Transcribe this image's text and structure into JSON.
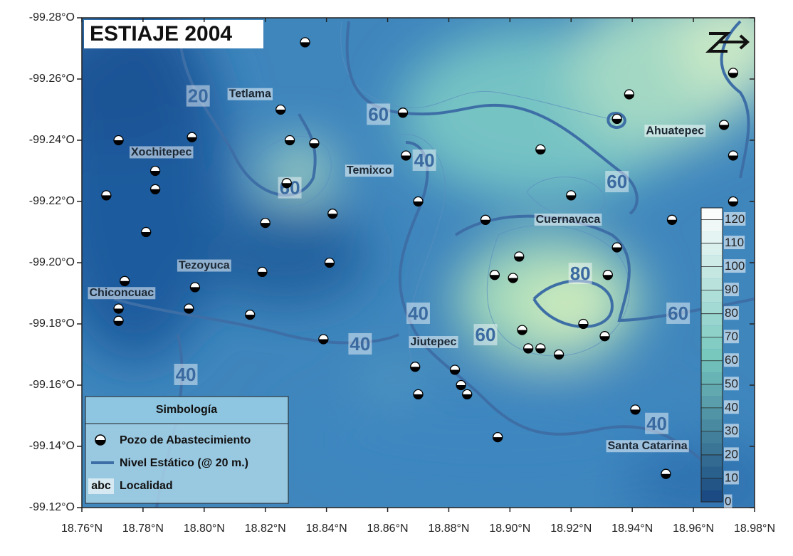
{
  "map": {
    "title": "ESTIAJE 2004",
    "xlim": [
      18.76,
      18.98
    ],
    "ylim": [
      -99.28,
      -99.12
    ],
    "xticks": [
      {
        "value": 18.76,
        "label": "18.76°N"
      },
      {
        "value": 18.78,
        "label": "18.78°N"
      },
      {
        "value": 18.8,
        "label": "18.80°N"
      },
      {
        "value": 18.82,
        "label": "18.82°N"
      },
      {
        "value": 18.84,
        "label": "18.84°N"
      },
      {
        "value": 18.86,
        "label": "18.86°N"
      },
      {
        "value": 18.88,
        "label": "18.88°N"
      },
      {
        "value": 18.9,
        "label": "18.90°N"
      },
      {
        "value": 18.92,
        "label": "18.92°N"
      },
      {
        "value": 18.94,
        "label": "18.94°N"
      },
      {
        "value": 18.96,
        "label": "18.96°N"
      },
      {
        "value": 18.98,
        "label": "18.98°N"
      }
    ],
    "yticks": [
      {
        "value": -99.28,
        "label": "-99.28°O"
      },
      {
        "value": -99.26,
        "label": "-99.26°O"
      },
      {
        "value": -99.24,
        "label": "-99.24°O"
      },
      {
        "value": -99.22,
        "label": "-99.22°O"
      },
      {
        "value": -99.2,
        "label": "-99.20°O"
      },
      {
        "value": -99.18,
        "label": "-99.18°O"
      },
      {
        "value": -99.16,
        "label": "-99.16°O"
      },
      {
        "value": -99.14,
        "label": "-99.14°O"
      },
      {
        "value": -99.12,
        "label": "-99.12°O"
      }
    ],
    "colorbar": {
      "lim": [
        0,
        125
      ],
      "ticks": [
        0,
        10,
        20,
        30,
        40,
        50,
        60,
        70,
        80,
        90,
        100,
        110,
        120
      ],
      "low_color": "#17467f",
      "high_color": "#ffffff"
    },
    "wells": {
      "x": [
        18.833,
        18.772,
        18.796,
        18.825,
        18.828,
        18.836,
        18.865,
        18.784,
        18.784,
        18.768,
        18.827,
        18.781,
        18.82,
        18.842,
        18.87,
        18.866,
        18.819,
        18.841,
        18.797,
        18.774,
        18.772,
        18.772,
        18.795,
        18.815,
        18.839,
        18.869,
        18.87,
        18.882,
        18.884,
        18.886,
        18.896,
        18.892,
        18.903,
        18.895,
        18.901,
        18.904,
        18.906,
        18.91,
        18.916,
        18.924,
        18.931,
        18.932,
        18.935,
        18.92,
        18.91,
        18.935,
        18.939,
        18.973,
        18.97,
        18.973,
        18.973,
        18.953,
        18.941,
        18.951
      ],
      "y": [
        -99.272,
        -99.24,
        -99.241,
        -99.25,
        -99.24,
        -99.239,
        -99.249,
        -99.23,
        -99.224,
        -99.222,
        -99.226,
        -99.21,
        -99.213,
        -99.216,
        -99.22,
        -99.235,
        -99.197,
        -99.2,
        -99.192,
        -99.194,
        -99.185,
        -99.181,
        -99.185,
        -99.183,
        -99.175,
        -99.166,
        -99.157,
        -99.165,
        -99.16,
        -99.157,
        -99.143,
        -99.214,
        -99.202,
        -99.196,
        -99.195,
        -99.178,
        -99.172,
        -99.172,
        -99.17,
        -99.18,
        -99.176,
        -99.196,
        -99.205,
        -99.222,
        -99.237,
        -99.247,
        -99.255,
        -99.262,
        -99.245,
        -99.235,
        -99.22,
        -99.214,
        -99.152,
        -99.131
      ]
    },
    "localities": [
      {
        "label": "Tetlama",
        "x": 18.815,
        "y": -99.255
      },
      {
        "label": "Xochitepec",
        "x": 18.786,
        "y": -99.236
      },
      {
        "label": "Temixco",
        "x": 18.854,
        "y": -99.23
      },
      {
        "label": "Cuernavaca",
        "x": 18.919,
        "y": -99.214
      },
      {
        "label": "Ahuatepec",
        "x": 18.954,
        "y": -99.243
      },
      {
        "label": "Tezoyuca",
        "x": 18.8,
        "y": -99.199
      },
      {
        "label": "Chiconcuac",
        "x": 18.773,
        "y": -99.19
      },
      {
        "label": "Jiutepec",
        "x": 18.875,
        "y": -99.174
      },
      {
        "label": "Santa Catarina",
        "x": 18.945,
        "y": -99.14
      }
    ],
    "contour_labels": [
      {
        "label": 20,
        "x": 18.798,
        "y": -99.254
      },
      {
        "label": 60,
        "x": 18.857,
        "y": -99.248
      },
      {
        "label": 40,
        "x": 18.872,
        "y": -99.233
      },
      {
        "label": 60,
        "x": 18.828,
        "y": -99.224
      },
      {
        "label": 60,
        "x": 18.935,
        "y": -99.226
      },
      {
        "label": 80,
        "x": 18.923,
        "y": -99.196
      },
      {
        "label": 40,
        "x": 18.87,
        "y": -99.183
      },
      {
        "label": 40,
        "x": 18.851,
        "y": -99.173
      },
      {
        "label": 60,
        "x": 18.892,
        "y": -99.176
      },
      {
        "label": 60,
        "x": 18.955,
        "y": -99.183
      },
      {
        "label": 40,
        "x": 18.794,
        "y": -99.163
      },
      {
        "label": 40,
        "x": 18.948,
        "y": -99.147
      }
    ],
    "legend": {
      "title": "Simbología",
      "well": "Pozo de Abastecimiento",
      "contour": "Nivel Estático (@ 20 m.)",
      "abc": "abc",
      "locality": "Localidad"
    }
  }
}
